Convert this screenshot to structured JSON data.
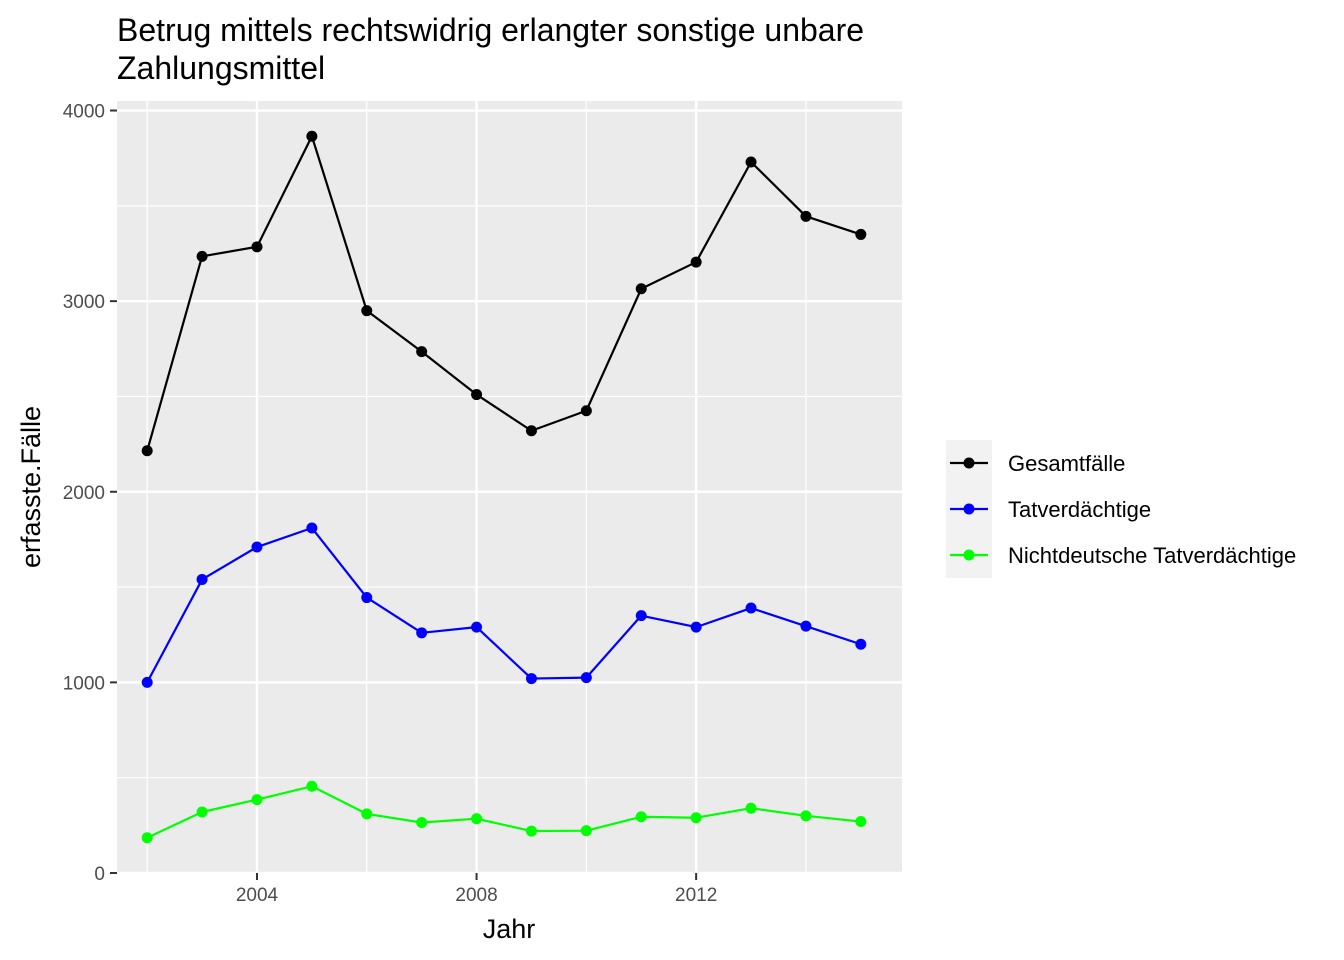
{
  "chart_data": {
    "type": "line",
    "title": "Betrug mittels rechtswidrig erlangter sonstige unbare Zahlungsmittel",
    "title_lines": [
      "Betrug mittels rechtswidrig erlangter sonstige unbare",
      "Zahlungsmittel"
    ],
    "xlabel": "Jahr",
    "ylabel": "erfasste.Fälle",
    "x": [
      2002,
      2003,
      2004,
      2005,
      2006,
      2007,
      2008,
      2009,
      2010,
      2011,
      2012,
      2013,
      2014,
      2015
    ],
    "xlim": [
      2001.45,
      2015.75
    ],
    "ylim": [
      0,
      4050
    ],
    "x_ticks": [
      2004,
      2008,
      2012
    ],
    "x_tick_labels": [
      "2004",
      "2008",
      "2012"
    ],
    "y_ticks": [
      0,
      1000,
      2000,
      3000,
      4000
    ],
    "y_tick_labels": [
      "0",
      "1000",
      "2000",
      "3000",
      "4000"
    ],
    "grid": true,
    "legend_position": "right",
    "series": [
      {
        "name": "Gesamtfälle",
        "color": "#000000",
        "values": [
          2215,
          3235,
          3285,
          3865,
          2950,
          2735,
          2510,
          2320,
          2425,
          3065,
          3205,
          3730,
          3445,
          3350
        ]
      },
      {
        "name": "Tatverdächtige",
        "color": "#0000ff",
        "values": [
          1000,
          1540,
          1710,
          1810,
          1445,
          1260,
          1290,
          1020,
          1025,
          1350,
          1290,
          1390,
          1295,
          1200
        ]
      },
      {
        "name": "Nichtdeutsche Tatverdächtige",
        "color": "#00ff00",
        "values": [
          185,
          320,
          385,
          455,
          310,
          265,
          285,
          220,
          222,
          295,
          290,
          340,
          300,
          270
        ]
      }
    ]
  }
}
